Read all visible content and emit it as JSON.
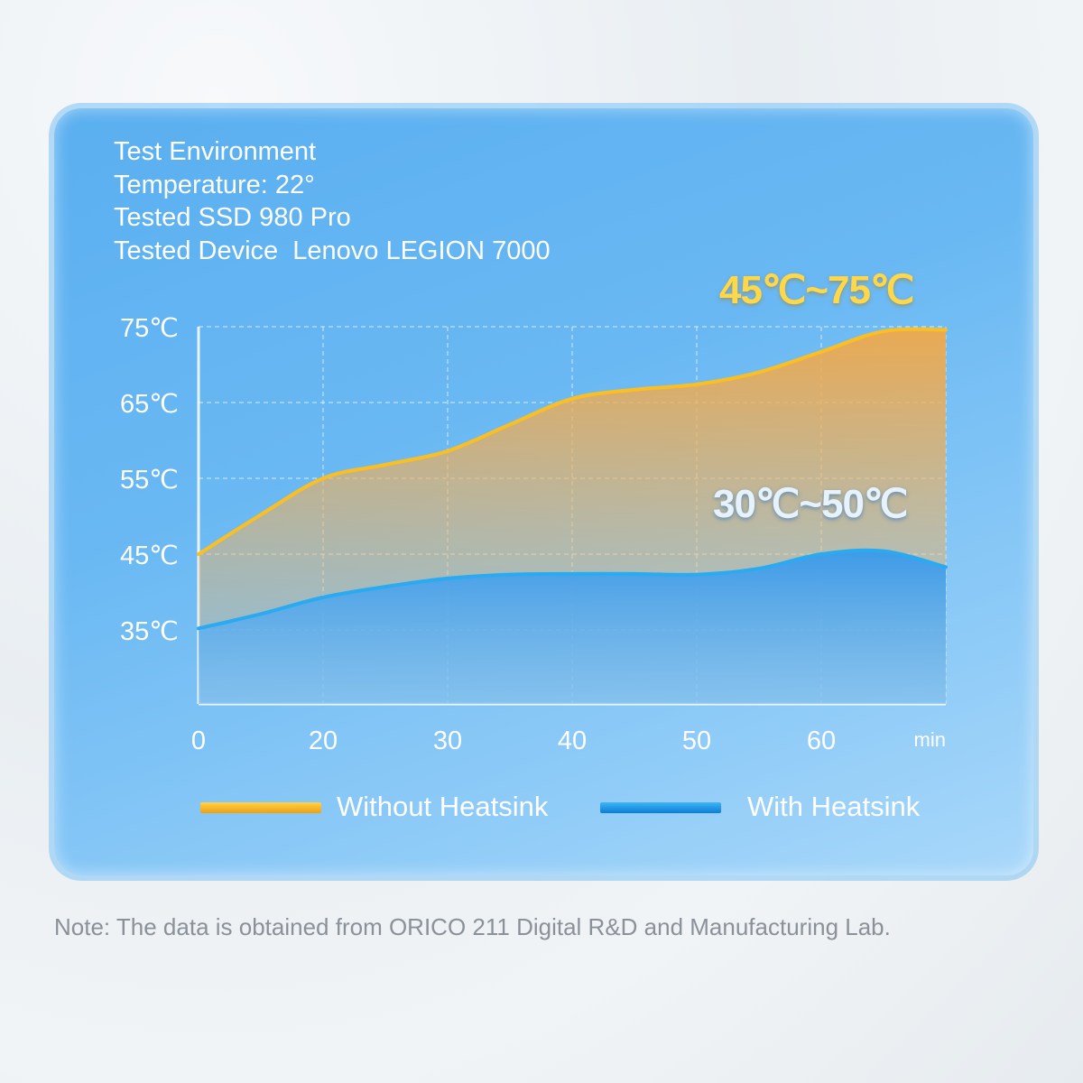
{
  "environment": {
    "lines": [
      "Test Environment",
      "Temperature: 22°",
      "Tested SSD 980 Pro",
      "Tested Device  Lenovo LEGION 7000"
    ]
  },
  "note": "Note: The data is obtained from ORICO 211 Digital R&D and Manufacturing Lab.",
  "chart_data": {
    "type": "area",
    "title": "",
    "xlabel": "min",
    "ylabel": "",
    "x_tick_labels": [
      "0",
      "20",
      "30",
      "40",
      "50",
      "60"
    ],
    "y_tick_labels": [
      "75℃",
      "65℃",
      "55℃",
      "45℃",
      "35℃"
    ],
    "y_ticks": [
      75,
      65,
      55,
      45,
      35
    ],
    "ylim": [
      25,
      75
    ],
    "grid": true,
    "legend_position": "bottom",
    "x": [
      0,
      10,
      20,
      25,
      30,
      35,
      40,
      45,
      50,
      55,
      60,
      65,
      70
    ],
    "series": [
      {
        "name": "Without Heatsink",
        "color": "#f5b21c",
        "values": [
          45,
          50.2,
          55,
          56.8,
          58.6,
          62.1,
          65.5,
          66.7,
          67.4,
          69,
          71.7,
          74.4,
          74.6
        ]
      },
      {
        "name": "With Heatsink",
        "color": "#1e9be8",
        "values": [
          35.2,
          37.1,
          39.3,
          40.7,
          41.8,
          42.3,
          42.4,
          42.4,
          42.3,
          43.1,
          45,
          45.4,
          43.3
        ]
      }
    ],
    "annotations": [
      {
        "text": "45℃~75℃",
        "color": "#ffd84a"
      },
      {
        "text": "30℃~50℃",
        "color": "#e6f3fd"
      }
    ]
  }
}
